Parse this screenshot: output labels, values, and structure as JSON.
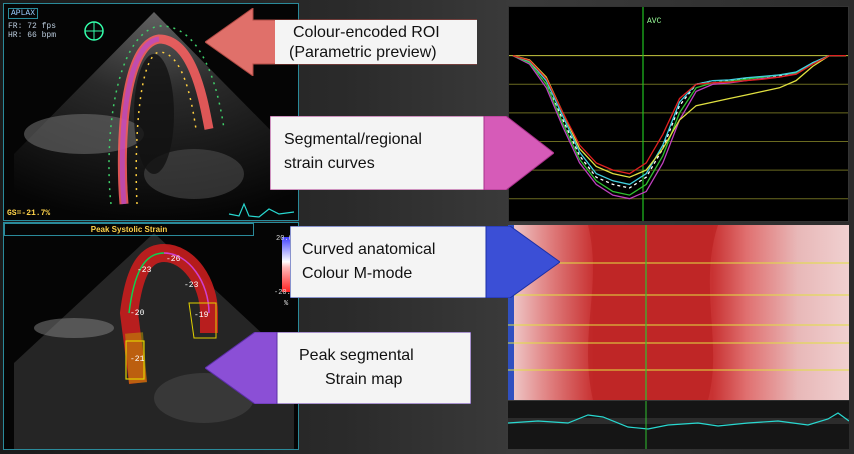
{
  "top_left_panel": {
    "view_label": "APLAX",
    "fr": "FR: 72 fps",
    "hr": "HR: 66 bpm",
    "gs": "GS=-21.7%"
  },
  "bottom_left_panel": {
    "title": "Peak Systolic Strain",
    "scale_max": "20.0",
    "scale_min": "-20.0",
    "scale_unit": "%",
    "segments": [
      "-23",
      "-26",
      "-23",
      "-20",
      "-19",
      "-21"
    ]
  },
  "curves_panel": {
    "event_label": "AVC"
  },
  "callouts": {
    "roi": [
      "Colour-encoded ROI",
      "(Parametric preview)"
    ],
    "curves": [
      "Segmental/regional",
      "strain curves"
    ],
    "mmode": [
      "Curved anatomical",
      "Colour M-mode"
    ],
    "peak": [
      "Peak segmental",
      "Strain map"
    ]
  },
  "colors": {
    "roi_arrow": "#e0706a",
    "curves_arrow": "#d65bb8",
    "mmode_arrow": "#3b4fd6",
    "peak_arrow": "#8b4fd6",
    "panel_border": "#2a8a9a"
  },
  "chart_data": {
    "type": "line",
    "x": [
      0,
      1,
      2,
      3,
      4,
      5,
      6,
      7,
      8,
      9,
      10,
      11,
      12,
      13,
      14,
      15,
      16,
      17,
      18,
      19,
      20
    ],
    "series": [
      {
        "values": [
          0,
          -1,
          -4,
          -9,
          -14,
          -17,
          -18,
          -18.5,
          -17,
          -13,
          -7,
          -4,
          -3.5,
          -3.5,
          -3.2,
          -3,
          -2.8,
          -2.5,
          -1,
          0,
          0
        ],
        "color": "#ffffff"
      },
      {
        "values": [
          0,
          -1.2,
          -4.5,
          -10,
          -15,
          -18,
          -19.5,
          -20,
          -19,
          -15,
          -9,
          -5,
          -4,
          -3.8,
          -3.5,
          -3.2,
          -3,
          -2.5,
          -1,
          0,
          0
        ],
        "color": "#c040c0"
      },
      {
        "values": [
          0,
          -1,
          -4,
          -9.5,
          -14.5,
          -17.5,
          -19,
          -19.5,
          -18,
          -14,
          -8,
          -4.5,
          -3.8,
          -3.6,
          -3.3,
          -3,
          -2.7,
          -2.4,
          -1,
          0,
          0
        ],
        "color": "#30c030"
      },
      {
        "values": [
          0,
          -0.8,
          -3.5,
          -8.5,
          -13.5,
          -16.5,
          -17.5,
          -18,
          -16.5,
          -12.5,
          -6.5,
          -4,
          -3.5,
          -3.4,
          -3.1,
          -2.9,
          -2.7,
          -2.3,
          -1,
          0,
          0
        ],
        "color": "#40d0e0"
      },
      {
        "values": [
          0,
          -0.6,
          -3,
          -8,
          -13,
          -15.5,
          -16.5,
          -17,
          -16,
          -13,
          -9,
          -7,
          -6.5,
          -6,
          -5.5,
          -5,
          -4.5,
          -3.5,
          -1.5,
          0,
          0
        ],
        "color": "#e0e040"
      },
      {
        "values": [
          0,
          -0.7,
          -3.2,
          -8,
          -12.5,
          -15,
          -16,
          -16.5,
          -15,
          -11,
          -6,
          -4,
          -3.8,
          -3.7,
          -3.5,
          -3.3,
          -3,
          -2.6,
          -1.2,
          0,
          0
        ],
        "color": "#e02020"
      }
    ],
    "ylim": [
      -22,
      4
    ]
  }
}
